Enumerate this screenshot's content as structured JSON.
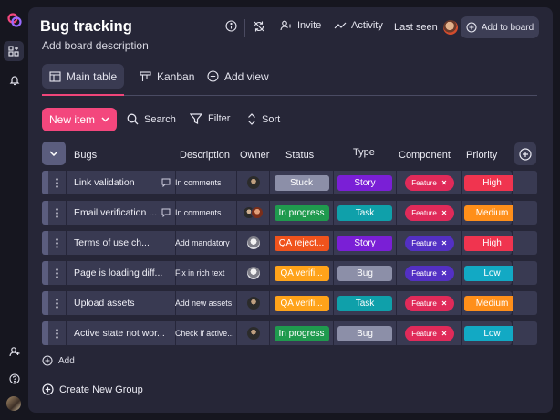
{
  "colors": {
    "accent_pink": "#f3477d",
    "panel_bg": "#262637",
    "row_bg": "#393a52",
    "stuck": "#8c8fa8",
    "in_progress": "#1f9a4e",
    "qa_rejected": "#f0531c",
    "qa_verifying": "#ffa31a",
    "story": "#7a1fd6",
    "task": "#0fa0aa",
    "bug": "#8c8fa8",
    "feature_red": "#e02a59",
    "feature_purple": "#5330c4",
    "high": "#f0344f",
    "medium": "#ff8f1a",
    "low": "#12a9c4"
  },
  "board": {
    "title": "Bug tracking",
    "description": "Add board description"
  },
  "header": {
    "info_icon": "info-icon",
    "sync_icon": "sync-off-icon",
    "invite_label": "Invite",
    "activity_label": "Activity",
    "last_seen_label": "Last seen",
    "add_to_board_label": "Add to board"
  },
  "views": {
    "tabs": [
      {
        "label": "Main table",
        "icon": "table-icon",
        "active": true
      },
      {
        "label": "Kanban",
        "icon": "kanban-icon",
        "active": false
      }
    ],
    "add_view_label": "Add view"
  },
  "toolbar": {
    "new_item_label": "New item",
    "search_label": "Search",
    "filter_label": "Filter",
    "sort_label": "Sort"
  },
  "table": {
    "columns": [
      "Bugs",
      "Description",
      "Owner",
      "Status",
      "Type",
      "Component",
      "Priority"
    ],
    "rows": [
      {
        "bug": "Link validation",
        "has_chat": true,
        "description": "In comments",
        "owner": "dark",
        "status": "Stuck",
        "status_color": "#8c8fa8",
        "type": "Story",
        "type_color": "#7a1fd6",
        "component": "Feature",
        "component_color": "#e02a59",
        "priority": "High",
        "priority_color": "#f0344f"
      },
      {
        "bug": "Email verification ...",
        "has_chat": true,
        "description": "In comments",
        "owner": "pair",
        "status": "In progress",
        "status_color": "#1f9a4e",
        "type": "Task",
        "type_color": "#0fa0aa",
        "component": "Feature",
        "component_color": "#e02a59",
        "priority": "Medium",
        "priority_color": "#ff8f1a"
      },
      {
        "bug": "Terms of use ch...",
        "has_chat": false,
        "description": "Add mandatory",
        "owner": "gray",
        "status": "QA reject...",
        "status_color": "#f0531c",
        "type": "Story",
        "type_color": "#7a1fd6",
        "component": "Feature",
        "component_color": "#5330c4",
        "priority": "High",
        "priority_color": "#f0344f"
      },
      {
        "bug": "Page is loading diff...",
        "has_chat": false,
        "description": "Fix in rich text",
        "owner": "gray",
        "status": "QA verifi...",
        "status_color": "#ffa31a",
        "type": "Bug",
        "type_color": "#8c8fa8",
        "component": "Feature",
        "component_color": "#5330c4",
        "priority": "Low",
        "priority_color": "#12a9c4"
      },
      {
        "bug": "Upload assets",
        "has_chat": false,
        "description": "Add new assets",
        "owner": "dark",
        "status": "QA verifi...",
        "status_color": "#ffa31a",
        "type": "Task",
        "type_color": "#0fa0aa",
        "component": "Feature",
        "component_color": "#e02a59",
        "priority": "Medium",
        "priority_color": "#ff8f1a"
      },
      {
        "bug": "Active state not wor...",
        "has_chat": false,
        "description": "Check if active...",
        "owner": "dark",
        "status": "In progress",
        "status_color": "#1f9a4e",
        "type": "Bug",
        "type_color": "#8c8fa8",
        "component": "Feature",
        "component_color": "#e02a59",
        "priority": "Low",
        "priority_color": "#12a9c4"
      }
    ],
    "add_row_label": "Add"
  },
  "footer": {
    "create_group_label": "Create New Group"
  }
}
